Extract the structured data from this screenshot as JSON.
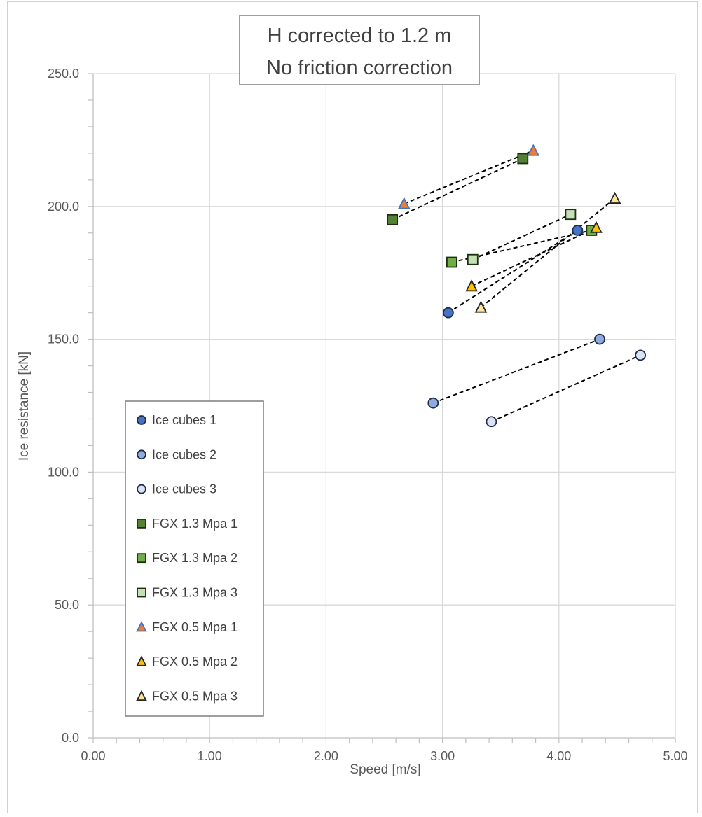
{
  "chart_data": {
    "type": "scatter",
    "title_lines": [
      "H corrected to 1.2 m",
      "No friction correction"
    ],
    "xlabel": "Speed [m/s]",
    "ylabel": "Ice resistance [kN]",
    "xlim": [
      0,
      5
    ],
    "ylim": [
      0,
      250
    ],
    "x_ticks": [
      "0.00",
      "1.00",
      "2.00",
      "3.00",
      "4.00",
      "5.00"
    ],
    "y_ticks": [
      "0.0",
      "50.0",
      "100.0",
      "150.0",
      "200.0",
      "250.0"
    ],
    "grid": true,
    "legend_position": "bottom-left",
    "series": [
      {
        "name": "Ice cubes 1",
        "marker": "circle",
        "fill": "#4472c4",
        "stroke": "#1f2d4d",
        "x": [
          3.05,
          4.16
        ],
        "y": [
          160.0,
          191.0
        ]
      },
      {
        "name": "Ice cubes 2",
        "marker": "circle",
        "fill": "#8faadc",
        "stroke": "#1f2d4d",
        "x": [
          2.92,
          4.35
        ],
        "y": [
          126.0,
          150.0
        ]
      },
      {
        "name": "Ice cubes 3",
        "marker": "circle",
        "fill": "#dae3f3",
        "stroke": "#1f2d4d",
        "x": [
          3.42,
          4.7
        ],
        "y": [
          119.0,
          144.0
        ]
      },
      {
        "name": "FGX 1.3 Mpa 1",
        "marker": "square",
        "fill": "#548235",
        "stroke": "#1e2e12",
        "x": [
          2.57,
          3.69
        ],
        "y": [
          195.0,
          218.0
        ]
      },
      {
        "name": "FGX 1.3 Mpa 2",
        "marker": "square",
        "fill": "#70ad47",
        "stroke": "#1e2e12",
        "x": [
          3.08,
          4.28
        ],
        "y": [
          179.0,
          191.0
        ]
      },
      {
        "name": "FGX 1.3 Mpa 3",
        "marker": "square",
        "fill": "#c5e0b4",
        "stroke": "#1e2e12",
        "x": [
          3.26,
          4.1
        ],
        "y": [
          180.0,
          197.0
        ]
      },
      {
        "name": "FGX 0.5 Mpa 1",
        "marker": "triangle",
        "fill": "#ed7d31",
        "stroke": "#4472c4",
        "x": [
          2.67,
          3.78
        ],
        "y": [
          201.0,
          221.0
        ]
      },
      {
        "name": "FGX 0.5 Mpa 2",
        "marker": "triangle",
        "fill": "#ffc000",
        "stroke": "#262626",
        "x": [
          3.25,
          4.32
        ],
        "y": [
          170.0,
          192.0
        ]
      },
      {
        "name": "FGX 0.5 Mpa 3",
        "marker": "triangle",
        "fill": "#ffe699",
        "stroke": "#262626",
        "x": [
          3.33,
          4.48
        ],
        "y": [
          162.0,
          203.0
        ]
      }
    ]
  }
}
